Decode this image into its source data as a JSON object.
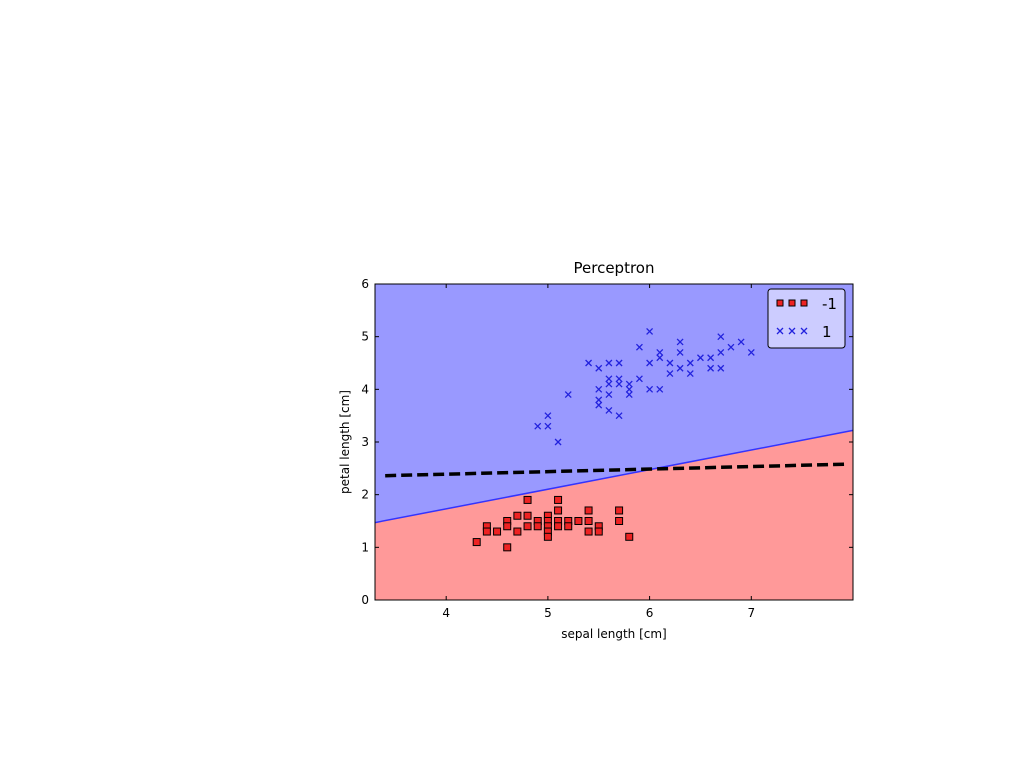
{
  "chart_data": {
    "type": "scatter",
    "title": "Perceptron",
    "xlabel": "sepal length [cm]",
    "ylabel": "petal length [cm]",
    "xlim": [
      3.3,
      8.0
    ],
    "ylim": [
      0,
      6
    ],
    "xticks": [
      4,
      5,
      6,
      7
    ],
    "yticks": [
      0,
      1,
      2,
      3,
      4,
      5,
      6
    ],
    "grid": false,
    "legend_position": "top-right",
    "regions": {
      "above_color": "#9999ff",
      "below_color": "#ff9999",
      "boundary": {
        "x": [
          3.3,
          8.0
        ],
        "y": [
          1.47,
          3.22
        ],
        "color": "#3333ff"
      }
    },
    "dashed_line": {
      "x": [
        3.4,
        7.95
      ],
      "y": [
        2.36,
        2.58
      ],
      "color": "#000000"
    },
    "series": [
      {
        "name": "-1",
        "marker": "square",
        "color": "#ee2222",
        "points": [
          [
            4.3,
            1.1
          ],
          [
            4.4,
            1.4
          ],
          [
            4.4,
            1.3
          ],
          [
            4.5,
            1.3
          ],
          [
            4.6,
            1.5
          ],
          [
            4.6,
            1.4
          ],
          [
            4.6,
            1.0
          ],
          [
            4.7,
            1.6
          ],
          [
            4.7,
            1.3
          ],
          [
            4.8,
            1.9
          ],
          [
            4.8,
            1.6
          ],
          [
            4.8,
            1.4
          ],
          [
            4.9,
            1.5
          ],
          [
            4.9,
            1.4
          ],
          [
            5.0,
            1.6
          ],
          [
            5.0,
            1.5
          ],
          [
            5.0,
            1.4
          ],
          [
            5.0,
            1.3
          ],
          [
            5.0,
            1.2
          ],
          [
            5.1,
            1.9
          ],
          [
            5.1,
            1.7
          ],
          [
            5.1,
            1.5
          ],
          [
            5.1,
            1.4
          ],
          [
            5.2,
            1.5
          ],
          [
            5.2,
            1.4
          ],
          [
            5.3,
            1.5
          ],
          [
            5.4,
            1.7
          ],
          [
            5.4,
            1.5
          ],
          [
            5.4,
            1.3
          ],
          [
            5.5,
            1.4
          ],
          [
            5.5,
            1.3
          ],
          [
            5.7,
            1.7
          ],
          [
            5.7,
            1.5
          ],
          [
            5.8,
            1.2
          ]
        ]
      },
      {
        "name": "1",
        "marker": "x",
        "color": "#2222dd",
        "points": [
          [
            5.0,
            3.3
          ],
          [
            4.9,
            3.3
          ],
          [
            5.0,
            3.5
          ],
          [
            5.1,
            3.0
          ],
          [
            5.2,
            3.9
          ],
          [
            5.4,
            4.5
          ],
          [
            5.5,
            4.4
          ],
          [
            5.5,
            4.0
          ],
          [
            5.5,
            3.8
          ],
          [
            5.5,
            3.7
          ],
          [
            5.6,
            4.5
          ],
          [
            5.6,
            4.2
          ],
          [
            5.6,
            4.1
          ],
          [
            5.6,
            3.9
          ],
          [
            5.6,
            3.6
          ],
          [
            5.7,
            4.5
          ],
          [
            5.7,
            4.2
          ],
          [
            5.7,
            4.1
          ],
          [
            5.7,
            3.5
          ],
          [
            5.8,
            4.1
          ],
          [
            5.8,
            4.0
          ],
          [
            5.8,
            3.9
          ],
          [
            5.9,
            4.8
          ],
          [
            5.9,
            4.2
          ],
          [
            6.0,
            5.1
          ],
          [
            6.0,
            4.5
          ],
          [
            6.0,
            4.0
          ],
          [
            6.1,
            4.7
          ],
          [
            6.1,
            4.6
          ],
          [
            6.1,
            4.0
          ],
          [
            6.2,
            4.5
          ],
          [
            6.2,
            4.3
          ],
          [
            6.3,
            4.9
          ],
          [
            6.3,
            4.7
          ],
          [
            6.3,
            4.4
          ],
          [
            6.4,
            4.5
          ],
          [
            6.4,
            4.3
          ],
          [
            6.5,
            4.6
          ],
          [
            6.6,
            4.6
          ],
          [
            6.6,
            4.4
          ],
          [
            6.7,
            5.0
          ],
          [
            6.7,
            4.7
          ],
          [
            6.7,
            4.4
          ],
          [
            6.8,
            4.8
          ],
          [
            6.9,
            4.9
          ],
          [
            7.0,
            4.7
          ]
        ]
      }
    ]
  }
}
